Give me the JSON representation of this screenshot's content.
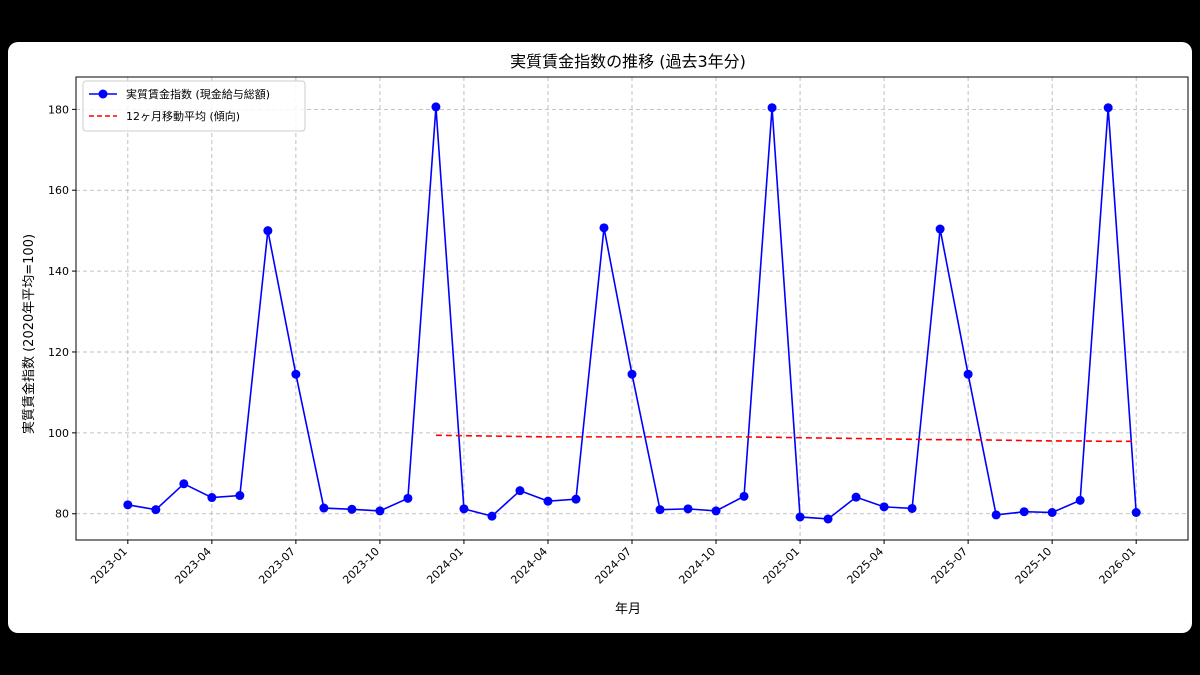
{
  "chart_data": {
    "type": "line",
    "title": "実質賃金指数の推移 (過去3年分)",
    "xlabel": "年月",
    "ylabel": "実質賃金指数 (2020年平均=100)",
    "ylim": [
      73.5,
      188
    ],
    "yticks": [
      80,
      100,
      120,
      140,
      160,
      180
    ],
    "xticks": [
      "2023-01",
      "2023-04",
      "2023-07",
      "2023-10",
      "2024-01",
      "2024-04",
      "2024-07",
      "2024-10",
      "2025-01",
      "2025-04",
      "2025-07",
      "2025-10",
      "2026-01"
    ],
    "grid": true,
    "legend_position": "upper left",
    "x": [
      "2023-01",
      "2023-02",
      "2023-03",
      "2023-04",
      "2023-05",
      "2023-06",
      "2023-07",
      "2023-08",
      "2023-09",
      "2023-10",
      "2023-11",
      "2023-12",
      "2024-01",
      "2024-02",
      "2024-03",
      "2024-04",
      "2024-05",
      "2024-06",
      "2024-07",
      "2024-08",
      "2024-09",
      "2024-10",
      "2024-11",
      "2024-12",
      "2025-01",
      "2025-02",
      "2025-03",
      "2025-04",
      "2025-05",
      "2025-06",
      "2025-07",
      "2025-08",
      "2025-09",
      "2025-10",
      "2025-11",
      "2025-12",
      "2026-01"
    ],
    "series": [
      {
        "name": "実質賃金指数 (現金給与総額)",
        "color": "#0000ff",
        "style": "solid-marker",
        "values": [
          82.2,
          81.0,
          87.4,
          84.0,
          84.5,
          150.0,
          114.5,
          81.4,
          81.1,
          80.7,
          83.8,
          180.6,
          81.2,
          79.4,
          85.7,
          83.1,
          83.6,
          150.7,
          114.5,
          81.0,
          81.2,
          80.7,
          84.3,
          180.4,
          79.2,
          78.7,
          84.1,
          81.7,
          81.3,
          150.4,
          114.5,
          79.7,
          80.5,
          80.3,
          83.3,
          180.4,
          80.3
        ]
      },
      {
        "name": "12ヶ月移動平均 (傾向)",
        "color": "#ff0000",
        "style": "dashed",
        "values": [
          null,
          null,
          null,
          null,
          null,
          null,
          null,
          null,
          null,
          null,
          null,
          99.4,
          99.3,
          99.2,
          99.1,
          99.0,
          99.0,
          99.0,
          99.0,
          99.0,
          99.0,
          99.0,
          99.0,
          98.9,
          98.8,
          98.7,
          98.6,
          98.5,
          98.4,
          98.3,
          98.3,
          98.2,
          98.1,
          98.0,
          98.0,
          97.9,
          97.9
        ]
      }
    ]
  }
}
